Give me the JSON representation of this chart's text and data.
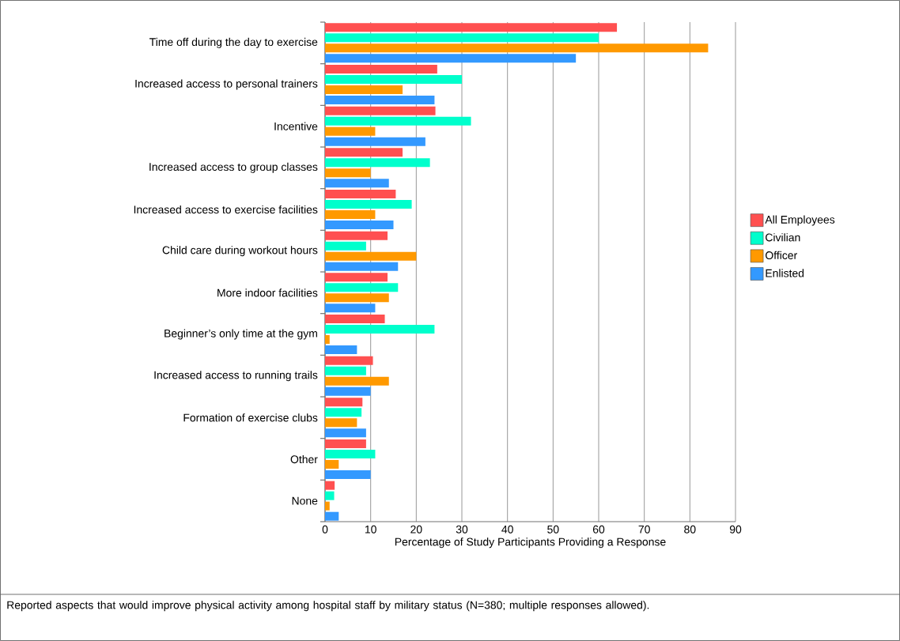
{
  "chart_data": {
    "type": "bar",
    "orientation": "horizontal",
    "xlabel": "Percentage of Study Participants Providing a Response",
    "categories": [
      "Time off during the day to exercise",
      "Increased access to personal trainers",
      "Incentive",
      "Increased access to group classes",
      "Increased access to exercise facilities",
      "Child care during workout hours",
      "More indoor facilities",
      "Beginner’s only time at the gym",
      "Increased access to running trails",
      "Formation of exercise clubs",
      "Other",
      "None"
    ],
    "series": [
      {
        "name": "All Employees",
        "color": "#ff5050",
        "values": [
          64,
          24.6,
          24.2,
          17,
          15.5,
          13.7,
          13.7,
          13.1,
          10.5,
          8.2,
          9,
          2.1
        ]
      },
      {
        "name": "Civilian",
        "color": "#00ffcc",
        "values": [
          60,
          30,
          32,
          23,
          19,
          9,
          16,
          24,
          9,
          8,
          11,
          2
        ]
      },
      {
        "name": "Officer",
        "color": "#ff9900",
        "values": [
          84,
          17,
          11,
          10,
          11,
          20,
          14,
          1,
          14,
          7,
          3,
          1
        ]
      },
      {
        "name": "Enlisted",
        "color": "#3399ff",
        "values": [
          55,
          24,
          22,
          14,
          15,
          16,
          11,
          7,
          10,
          9,
          10,
          3
        ]
      }
    ],
    "xlim": [
      0,
      90
    ],
    "xticks": [
      0,
      10,
      20,
      30,
      40,
      50,
      60,
      70,
      80,
      90
    ],
    "grid": "x",
    "legend": "right",
    "annotations": [
      "Reported aspects that would improve physical activity among hospital staff by military status (N=380; multiple responses allowed)."
    ]
  }
}
